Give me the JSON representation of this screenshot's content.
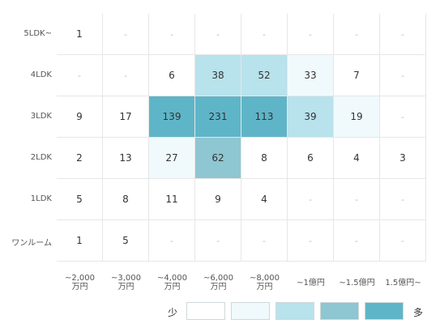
{
  "chart_data": {
    "type": "heatmap",
    "rows": [
      "5LDK~",
      "4LDK",
      "3LDK",
      "2LDK",
      "1LDK",
      "ワンルーム"
    ],
    "columns": [
      [
        "~2,000",
        "万円"
      ],
      [
        "~3,000",
        "万円"
      ],
      [
        "~4,000",
        "万円"
      ],
      [
        "~6,000",
        "万円"
      ],
      [
        "~8,000",
        "万円"
      ],
      [
        "~1億円"
      ],
      [
        "~1.5億円"
      ],
      [
        "1.5億円~"
      ]
    ],
    "values": [
      [
        "1",
        "-",
        "-",
        "-",
        "-",
        "-",
        "-",
        "-"
      ],
      [
        "-",
        "-",
        "6",
        "38",
        "52",
        "33",
        "7",
        "-"
      ],
      [
        "9",
        "17",
        "139",
        "231",
        "113",
        "39",
        "19",
        "-"
      ],
      [
        "2",
        "13",
        "27",
        "62",
        "8",
        "6",
        "4",
        "3"
      ],
      [
        "5",
        "8",
        "11",
        "9",
        "4",
        "-",
        "-",
        "-"
      ],
      [
        "1",
        "5",
        "-",
        "-",
        "-",
        "-",
        "-",
        "-"
      ]
    ],
    "level": [
      [
        0,
        0,
        0,
        0,
        0,
        0,
        0,
        0
      ],
      [
        0,
        0,
        0,
        2,
        2,
        1,
        0,
        0
      ],
      [
        0,
        0,
        4,
        4,
        4,
        2,
        1,
        0
      ],
      [
        0,
        0,
        1,
        3,
        0,
        0,
        0,
        0
      ],
      [
        0,
        0,
        0,
        0,
        0,
        0,
        0,
        0
      ],
      [
        0,
        0,
        0,
        0,
        0,
        0,
        0,
        0
      ]
    ],
    "legend": {
      "low_label": "少",
      "high_label": "多",
      "colors": [
        "#ffffff",
        "#f0fafd",
        "#b8e2ec",
        "#8ec6d2",
        "#5fb5c8"
      ]
    }
  }
}
